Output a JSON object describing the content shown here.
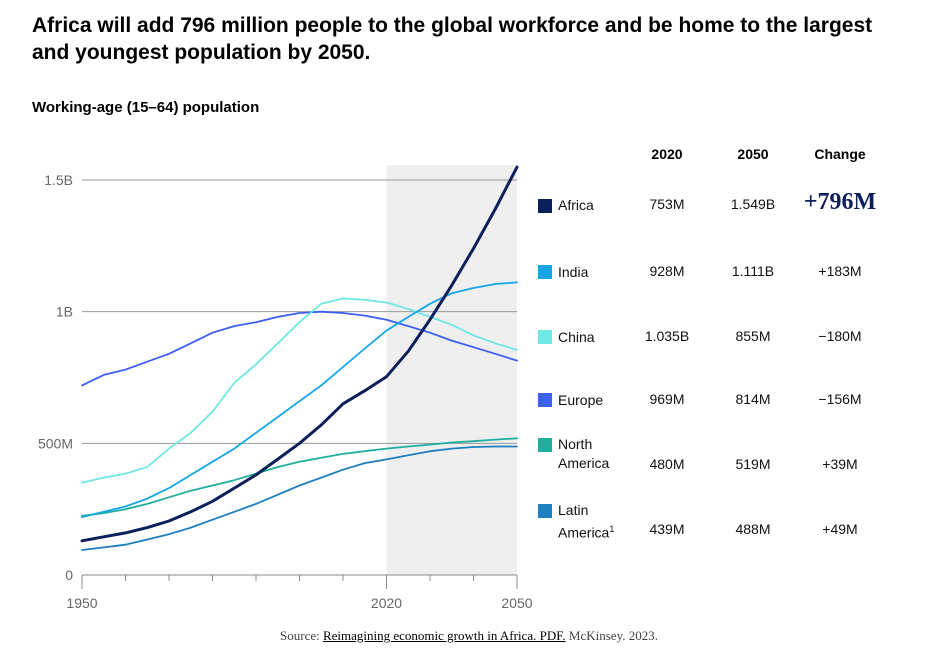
{
  "title": "Africa will add 796 million people to the global workforce and be home to the largest and youngest population by 2050.",
  "subtitle": "Working-age (15–64) population",
  "columns": {
    "y2020": "2020",
    "y2050": "2050",
    "change": "Change"
  },
  "regions": [
    {
      "name": "Africa",
      "name_line2": "",
      "sup": "",
      "color": "#0b1f5b",
      "v2020": "753M",
      "v2050": "1.549B",
      "change": "+796M"
    },
    {
      "name": "India",
      "name_line2": "",
      "sup": "",
      "color": "#13a6e8",
      "v2020": "928M",
      "v2050": "1.111B",
      "change": "+183M"
    },
    {
      "name": "China",
      "name_line2": "",
      "sup": "",
      "color": "#6fe7e3",
      "v2020": "1.035B",
      "v2050": "855M",
      "change": "−180M"
    },
    {
      "name": "Europe",
      "name_line2": "",
      "sup": "",
      "color": "#3d5ff0",
      "v2020": "969M",
      "v2050": "814M",
      "change": "−156M"
    },
    {
      "name": "North",
      "name_line2": "America",
      "sup": "",
      "color": "#1fae9e",
      "v2020": "480M",
      "v2050": "519M",
      "change": "+39M"
    },
    {
      "name": "Latin",
      "name_line2": "America",
      "sup": "1",
      "color": "#1d7fc0",
      "v2020": "439M",
      "v2050": "488M",
      "change": "+49M"
    }
  ],
  "source": {
    "prefix": "Source: ",
    "link_text": "Reimagining economic growth in Africa. PDF.",
    "suffix": " McKinsey. 2023."
  },
  "chart_data": {
    "type": "line",
    "title": "Africa will add 796 million people to the global workforce and be home to the largest and youngest population by 2050.",
    "subtitle": "Working-age (15–64) population",
    "xlim": [
      1950,
      2050
    ],
    "ylim": [
      0,
      1550
    ],
    "x_ticks": [
      1950,
      2020,
      2050
    ],
    "x_tick_labels": [
      "1950",
      "2020",
      "2050"
    ],
    "x_minor_ticks": [
      1960,
      1970,
      1980,
      1990,
      2000,
      2010,
      2030,
      2040
    ],
    "y_ticks": [
      0,
      500,
      1000,
      1500
    ],
    "y_tick_labels": [
      "0",
      "500M",
      "1B",
      "1.5B"
    ],
    "units": "millions",
    "grid": "horizontal",
    "highlight_range": [
      2020,
      2050
    ],
    "x": [
      1950,
      1955,
      1960,
      1965,
      1970,
      1975,
      1980,
      1985,
      1990,
      1995,
      2000,
      2005,
      2010,
      2015,
      2020,
      2025,
      2030,
      2035,
      2040,
      2045,
      2050
    ],
    "series": [
      {
        "name": "Africa",
        "values": [
          130,
          145,
          160,
          180,
          205,
          240,
          280,
          330,
          380,
          440,
          500,
          570,
          650,
          700,
          753,
          850,
          970,
          1100,
          1240,
          1390,
          1549
        ]
      },
      {
        "name": "India",
        "values": [
          220,
          240,
          260,
          290,
          330,
          380,
          430,
          480,
          540,
          600,
          660,
          720,
          790,
          860,
          928,
          980,
          1030,
          1070,
          1090,
          1105,
          1111
        ]
      },
      {
        "name": "China",
        "values": [
          350,
          370,
          385,
          410,
          480,
          540,
          620,
          730,
          800,
          880,
          960,
          1030,
          1050,
          1045,
          1035,
          1010,
          980,
          950,
          910,
          880,
          855
        ]
      },
      {
        "name": "Europe",
        "values": [
          720,
          760,
          780,
          810,
          840,
          880,
          920,
          945,
          960,
          980,
          995,
          1000,
          995,
          985,
          969,
          945,
          920,
          890,
          865,
          840,
          814
        ]
      },
      {
        "name": "North America",
        "values": [
          225,
          235,
          250,
          270,
          295,
          320,
          340,
          360,
          385,
          410,
          430,
          445,
          460,
          470,
          480,
          488,
          495,
          503,
          508,
          514,
          519
        ]
      },
      {
        "name": "Latin America",
        "values": [
          95,
          105,
          115,
          135,
          155,
          180,
          210,
          240,
          270,
          305,
          340,
          370,
          400,
          425,
          439,
          455,
          470,
          480,
          486,
          488,
          488
        ]
      }
    ]
  }
}
